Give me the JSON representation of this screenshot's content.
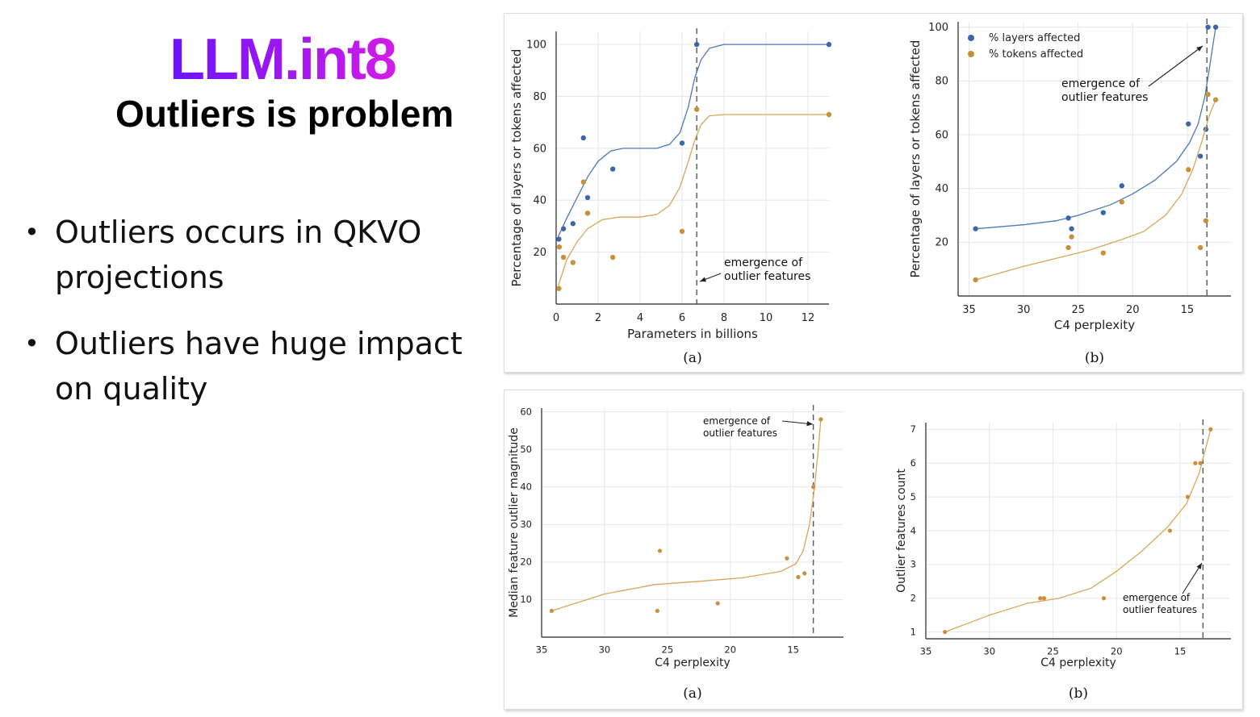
{
  "slide": {
    "title": "LLM.int8",
    "subtitle": "Outliers is problem",
    "bullets": [
      "Outliers occurs in QKVO projections",
      "Outliers have huge impact on quality"
    ]
  },
  "colors": {
    "blue": "#3b66a8",
    "orange": "#c8903c",
    "blue_line": "#4a7ab8",
    "orange_line": "#d9a55a"
  },
  "chart_data": [
    {
      "type": "scatter",
      "caption": "(a)",
      "xlabel": "Parameters in billions",
      "ylabel": "Percentage of layers or tokens affected",
      "xlim": [
        0,
        13
      ],
      "ylim": [
        0,
        105
      ],
      "xticks": [
        0,
        2,
        4,
        6,
        8,
        10,
        12
      ],
      "yticks": [
        20,
        40,
        60,
        80,
        100
      ],
      "grid": true,
      "vline": 6.7,
      "annotation": "emergence of\noutlier features",
      "series": [
        {
          "color": "blue",
          "points": [
            [
              0.13,
              25
            ],
            [
              0.35,
              29
            ],
            [
              0.8,
              31
            ],
            [
              1.3,
              64
            ],
            [
              1.5,
              41
            ],
            [
              2.7,
              52
            ],
            [
              6.0,
              62
            ],
            [
              6.7,
              100
            ],
            [
              13,
              100
            ]
          ],
          "curve": [
            [
              0.1,
              26
            ],
            [
              0.5,
              33
            ],
            [
              1.0,
              41
            ],
            [
              1.5,
              49
            ],
            [
              2.0,
              55
            ],
            [
              2.6,
              59
            ],
            [
              3.2,
              60
            ],
            [
              4.0,
              60
            ],
            [
              4.8,
              60
            ],
            [
              5.4,
              61.5
            ],
            [
              5.9,
              66
            ],
            [
              6.3,
              76
            ],
            [
              6.6,
              87
            ],
            [
              6.9,
              94
            ],
            [
              7.3,
              98.5
            ],
            [
              8.0,
              100
            ],
            [
              9,
              100
            ],
            [
              13,
              100
            ]
          ]
        },
        {
          "color": "orange",
          "points": [
            [
              0.13,
              6
            ],
            [
              0.15,
              22
            ],
            [
              0.35,
              18
            ],
            [
              0.8,
              16
            ],
            [
              1.3,
              47
            ],
            [
              1.5,
              35
            ],
            [
              2.7,
              18
            ],
            [
              6.0,
              28
            ],
            [
              6.7,
              75
            ],
            [
              13,
              73
            ]
          ],
          "curve": [
            [
              0.1,
              7
            ],
            [
              0.5,
              17
            ],
            [
              1.0,
              24
            ],
            [
              1.5,
              29
            ],
            [
              2.2,
              32.5
            ],
            [
              3.0,
              33.5
            ],
            [
              4.0,
              33.5
            ],
            [
              4.8,
              34.5
            ],
            [
              5.4,
              38
            ],
            [
              5.9,
              45
            ],
            [
              6.3,
              55
            ],
            [
              6.6,
              63
            ],
            [
              6.9,
              69
            ],
            [
              7.3,
              72.5
            ],
            [
              8.0,
              73
            ],
            [
              9,
              73
            ],
            [
              13,
              73
            ]
          ]
        }
      ]
    },
    {
      "type": "scatter",
      "caption": "(b)",
      "xlabel": "C4 perplexity",
      "ylabel": "Percentage of layers or tokens affected",
      "xlim": [
        36,
        11
      ],
      "ylim": [
        0,
        102
      ],
      "xticks": [
        35,
        30,
        25,
        20,
        15
      ],
      "yticks": [
        20,
        40,
        60,
        80,
        100
      ],
      "grid": true,
      "vline": 13.2,
      "legend": [
        {
          "label": "% layers affected",
          "color": "blue"
        },
        {
          "label": "% tokens affected",
          "color": "orange"
        }
      ],
      "annotation": "emergence of\noutlier features",
      "series": [
        {
          "color": "blue",
          "points": [
            [
              34.4,
              25
            ],
            [
              25.9,
              29
            ],
            [
              25.6,
              25
            ],
            [
              22.7,
              31
            ],
            [
              21.0,
              41
            ],
            [
              14.9,
              64
            ],
            [
              13.8,
              52
            ],
            [
              13.3,
              62
            ],
            [
              13.1,
              100
            ],
            [
              12.4,
              100
            ]
          ],
          "curve": [
            [
              34.4,
              25
            ],
            [
              30,
              26.5
            ],
            [
              27,
              28
            ],
            [
              25,
              30
            ],
            [
              22,
              34
            ],
            [
              20,
              38
            ],
            [
              18,
              43
            ],
            [
              16,
              50
            ],
            [
              14.8,
              57
            ],
            [
              14,
              64
            ],
            [
              13.4,
              74
            ],
            [
              13.0,
              84
            ],
            [
              12.7,
              92
            ],
            [
              12.4,
              100
            ]
          ]
        },
        {
          "color": "orange",
          "points": [
            [
              34.4,
              6
            ],
            [
              25.9,
              18
            ],
            [
              25.6,
              22
            ],
            [
              22.7,
              16
            ],
            [
              21.0,
              35
            ],
            [
              14.9,
              47
            ],
            [
              13.8,
              18
            ],
            [
              13.3,
              28
            ],
            [
              13.1,
              75
            ],
            [
              12.4,
              73
            ]
          ],
          "curve": [
            [
              34.4,
              6
            ],
            [
              30,
              11
            ],
            [
              27,
              14
            ],
            [
              24,
              17
            ],
            [
              21,
              21
            ],
            [
              19,
              24
            ],
            [
              17,
              30
            ],
            [
              15.5,
              38
            ],
            [
              14.5,
              47
            ],
            [
              13.7,
              57
            ],
            [
              13.0,
              67
            ],
            [
              12.4,
              73
            ]
          ]
        }
      ]
    },
    {
      "type": "scatter",
      "caption": "(a)",
      "xlabel": "C4 perplexity",
      "ylabel": "Median feature outlier magnitude",
      "xlim": [
        35,
        11
      ],
      "ylim": [
        0,
        61
      ],
      "xticks": [
        35,
        30,
        25,
        20,
        15
      ],
      "yticks": [
        10,
        20,
        30,
        40,
        50,
        60
      ],
      "grid": true,
      "vline": 13.4,
      "annotation": "emergence of\noutlier features",
      "series": [
        {
          "color": "orange",
          "points": [
            [
              34.2,
              7
            ],
            [
              25.8,
              7
            ],
            [
              25.6,
              23
            ],
            [
              21.0,
              9
            ],
            [
              15.5,
              21
            ],
            [
              14.6,
              16
            ],
            [
              14.1,
              17
            ],
            [
              13.4,
              40
            ],
            [
              12.8,
              58
            ]
          ],
          "curve": [
            [
              34.2,
              7
            ],
            [
              30,
              11.5
            ],
            [
              26,
              14
            ],
            [
              22,
              15
            ],
            [
              19,
              15.8
            ],
            [
              16,
              17.5
            ],
            [
              14.8,
              19.5
            ],
            [
              14.2,
              23
            ],
            [
              13.7,
              30
            ],
            [
              13.3,
              40
            ],
            [
              13.0,
              50
            ],
            [
              12.8,
              58
            ]
          ]
        }
      ]
    },
    {
      "type": "scatter",
      "caption": "(b)",
      "xlabel": "C4 perplexity",
      "ylabel": "Outlier features count",
      "xlim": [
        35,
        11
      ],
      "ylim": [
        0.8,
        7.2
      ],
      "xticks": [
        35,
        30,
        25,
        20,
        15
      ],
      "yticks": [
        1,
        2,
        3,
        4,
        5,
        6,
        7
      ],
      "grid": true,
      "vline": 13.2,
      "annotation": "emergence of\noutlier features",
      "series": [
        {
          "color": "orange",
          "points": [
            [
              33.5,
              1
            ],
            [
              26.0,
              2
            ],
            [
              25.7,
              2
            ],
            [
              21.0,
              2
            ],
            [
              15.8,
              4
            ],
            [
              14.4,
              5
            ],
            [
              13.8,
              6
            ],
            [
              13.4,
              6
            ],
            [
              12.6,
              7
            ]
          ],
          "curve": [
            [
              33.5,
              1
            ],
            [
              30,
              1.5
            ],
            [
              27,
              1.85
            ],
            [
              24.5,
              2.0
            ],
            [
              22,
              2.3
            ],
            [
              20,
              2.8
            ],
            [
              18,
              3.4
            ],
            [
              16,
              4.1
            ],
            [
              14.5,
              4.8
            ],
            [
              13.5,
              5.7
            ],
            [
              12.6,
              7
            ]
          ]
        }
      ]
    }
  ]
}
